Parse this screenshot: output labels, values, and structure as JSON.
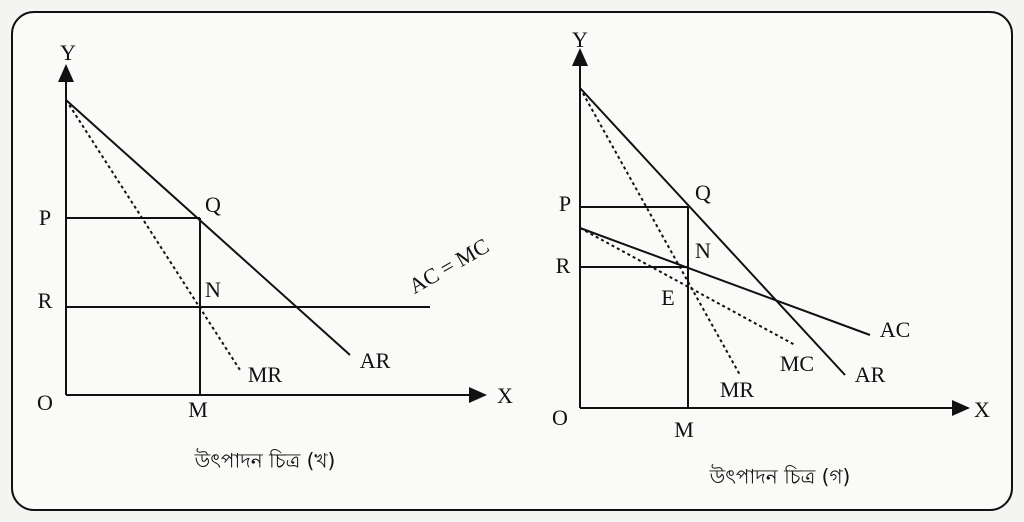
{
  "panels": [
    {
      "axis": {
        "y": "Y",
        "x": "X",
        "origin": "O"
      },
      "points": {
        "p": "P",
        "r": "R",
        "q": "Q",
        "n": "N",
        "m": "M"
      },
      "curves": {
        "mr": "MR",
        "ar": "AR",
        "ac_mc": "AC = MC"
      },
      "caption": "উৎপাদন চিত্র (খ)"
    },
    {
      "axis": {
        "y": "Y",
        "x": "X",
        "origin": "O"
      },
      "points": {
        "p": "P",
        "r": "R",
        "q": "Q",
        "n": "N",
        "e": "E",
        "m": "M"
      },
      "curves": {
        "mr": "MR",
        "mc": "MC",
        "ar": "AR",
        "ac": "AC"
      },
      "caption": "উৎপাদন চিত্র (গ)"
    }
  ]
}
